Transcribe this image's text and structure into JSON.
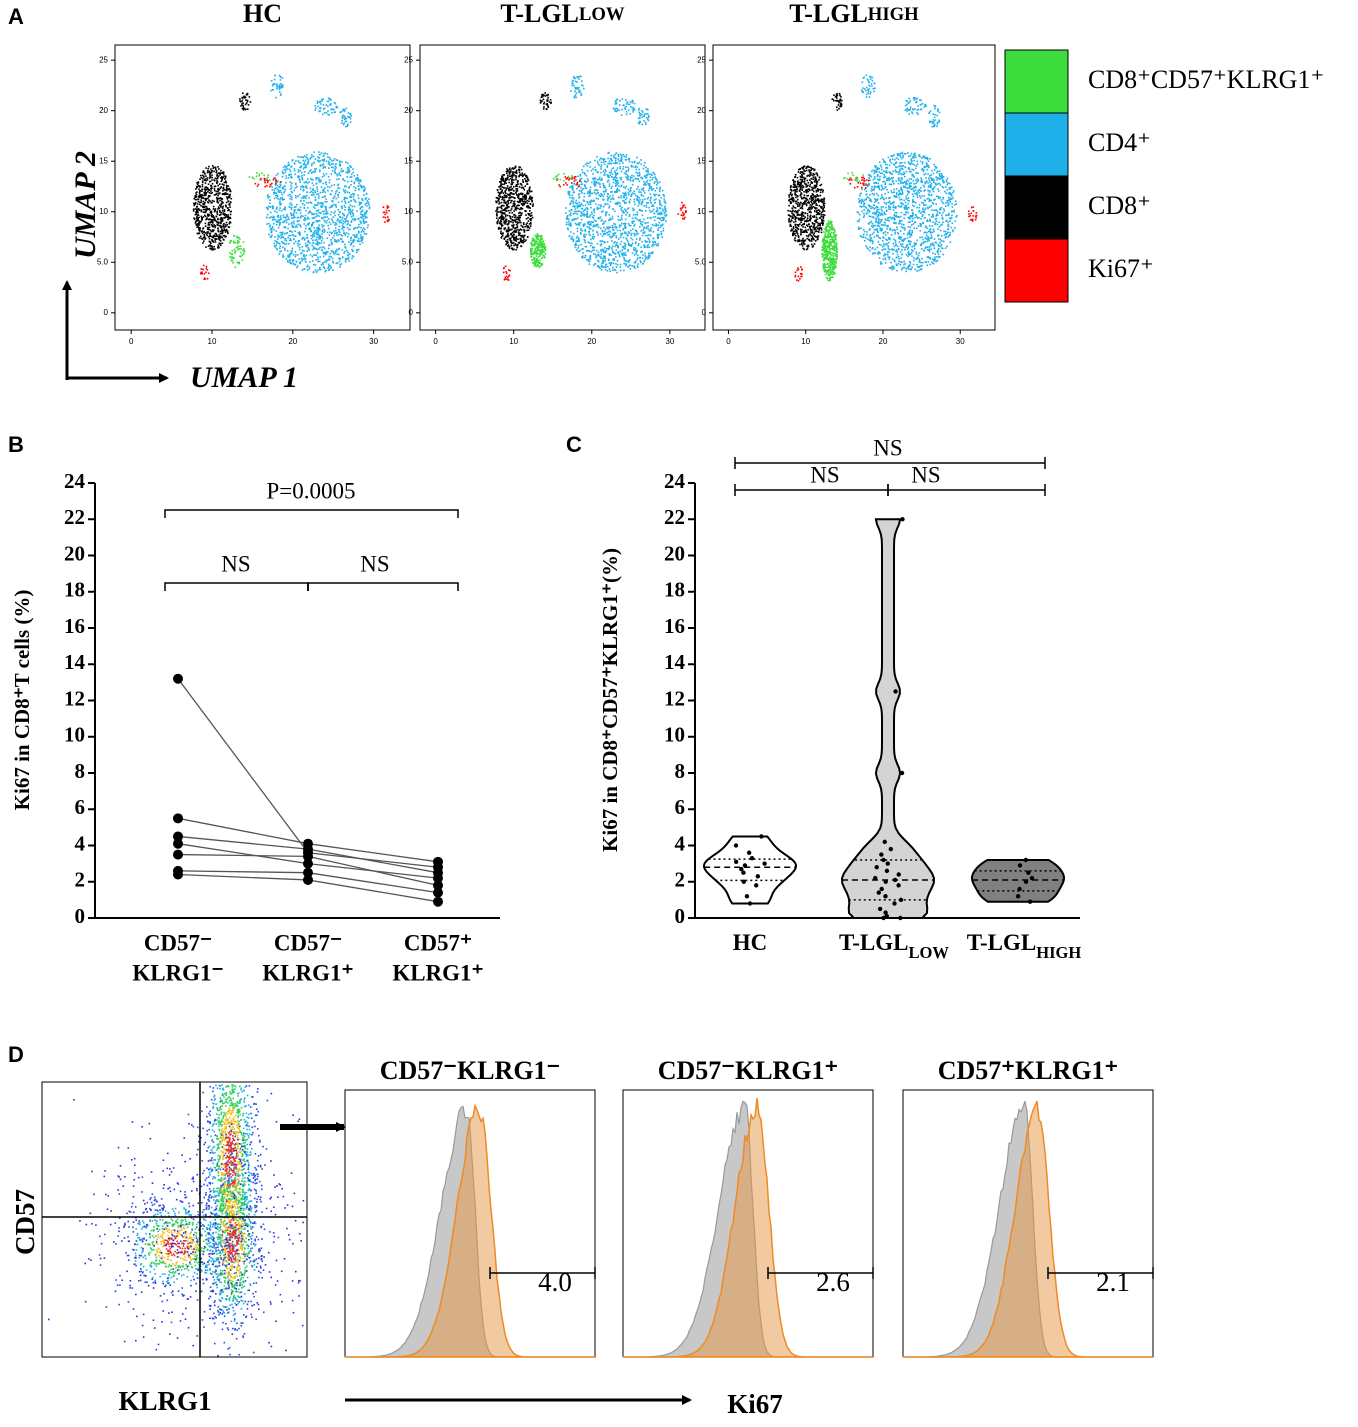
{
  "panel_labels": [
    "A",
    "B",
    "C",
    "D"
  ],
  "chart_data": [
    {
      "type": "umap",
      "titles": [
        [
          "HC"
        ],
        [
          "T-LGL",
          "LOW"
        ],
        [
          "T-LGL",
          "HIGH"
        ]
      ],
      "xlabel": "UMAP 1",
      "ylabel": "UMAP 2",
      "xlim": [
        -2,
        34.5
      ],
      "ylim": [
        -1.7,
        26.5
      ],
      "xticks": [
        0,
        10,
        20,
        30
      ],
      "yticks": [
        0,
        {
          "value": 5,
          "label": "5.0"
        },
        10,
        15,
        20,
        25
      ],
      "legend": [
        {
          "name": "CD8⁺CD57⁺KLRG1⁺",
          "color": "#3ddc3d"
        },
        {
          "name": "CD4⁺",
          "color": "#1fb0ea"
        },
        {
          "name": "CD8⁺",
          "color": "#000000"
        },
        {
          "name": "Ki67⁺",
          "color": "#ff0000"
        }
      ]
    },
    {
      "type": "paired_line",
      "ylabel": "Ki67 in CD8⁺T cells (%)",
      "categories": [
        [
          "CD57⁻",
          "KLRG1⁻"
        ],
        [
          "CD57⁻",
          "KLRG1⁺"
        ],
        [
          "CD57⁺",
          "KLRG1⁺"
        ]
      ],
      "ylim": [
        0,
        24
      ],
      "yticks": [
        0,
        2,
        4,
        6,
        8,
        10,
        12,
        14,
        16,
        18,
        20,
        22,
        24
      ],
      "color": "#000000",
      "series": [
        {
          "values": [
            13.2,
            3.6,
            2.8
          ]
        },
        {
          "values": [
            5.5,
            4.1,
            3.1
          ]
        },
        {
          "values": [
            4.5,
            3.8,
            2.5
          ]
        },
        {
          "values": [
            4.1,
            3.0,
            2.2
          ]
        },
        {
          "values": [
            3.5,
            3.4,
            1.8
          ]
        },
        {
          "values": [
            2.6,
            2.5,
            1.4
          ]
        },
        {
          "values": [
            2.4,
            2.1,
            0.9
          ]
        }
      ],
      "annotations": [
        "P=0.0005",
        "NS",
        "NS"
      ]
    },
    {
      "type": "violin",
      "ylabel": "Ki67 in CD8⁺CD57⁺KLRG1⁺(%)",
      "categories": [
        [
          "HC"
        ],
        [
          "T-LGL",
          "LOW"
        ],
        [
          "T-LGL",
          "HIGH"
        ]
      ],
      "ylim": [
        0,
        24
      ],
      "yticks": [
        0,
        2,
        4,
        6,
        8,
        10,
        12,
        14,
        16,
        18,
        20,
        22,
        24
      ],
      "series": [
        {
          "color": "#ffffff",
          "values": [
            4.5,
            4.0,
            3.6,
            3.3,
            3.1,
            3.0,
            2.9,
            2.7,
            2.5,
            2.3,
            2.0,
            1.8,
            1.2,
            0.8
          ]
        },
        {
          "color": "#d4d4d4",
          "values": [
            22.0,
            12.5,
            8.0,
            4.2,
            3.8,
            3.5,
            3.2,
            3.0,
            2.8,
            2.6,
            2.4,
            2.2,
            2.1,
            2.0,
            1.8,
            1.6,
            1.4,
            1.2,
            1.0,
            0.8,
            0.5,
            0.3,
            0.1,
            0.0,
            0.0
          ]
        },
        {
          "color": "#808080",
          "values": [
            3.2,
            2.9,
            2.5,
            2.2,
            2.0,
            1.6,
            1.2,
            0.9
          ]
        }
      ],
      "annotations": [
        "NS",
        "NS",
        "NS"
      ]
    },
    {
      "type": "flow",
      "xlabel": "KLRG1",
      "ylabel": "CD57",
      "hist_xlabel": "Ki67",
      "titles": [
        "CD57⁻KLRG1⁻",
        "CD57⁻KLRG1⁺",
        "CD57⁺KLRG1⁺"
      ],
      "values": [
        4.0,
        2.6,
        2.1
      ],
      "value_labels": [
        "4.0",
        "2.6",
        "2.1"
      ]
    }
  ]
}
